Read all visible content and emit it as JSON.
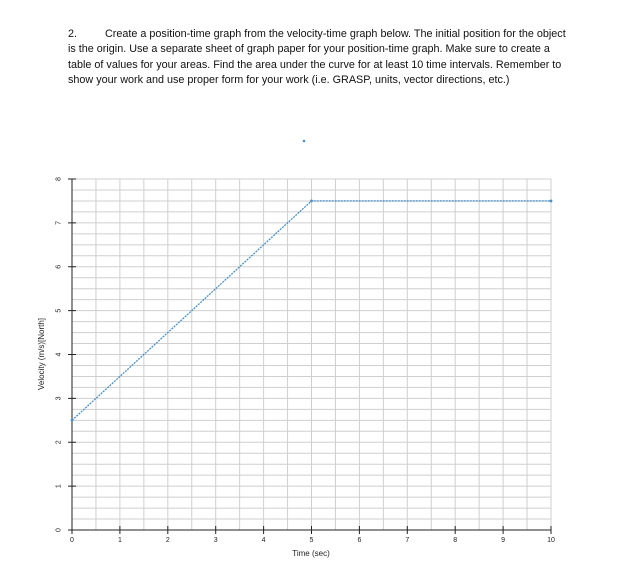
{
  "question": {
    "number": "2.",
    "text": "Create a position-time graph from the velocity-time graph below.  The initial position for the object is the origin.  Use a separate sheet of graph paper for your position-time graph.  Make sure to create a table of values for your areas.  Find the area under the curve for at least 10 time intervals.  Remember to show your work and use proper form for your work (i.e. GRASP, units, vector directions, etc.)"
  },
  "chart_data": {
    "type": "line",
    "xlabel": "Time (sec)",
    "ylabel": "Velocity (m/s)[North]",
    "xlim": [
      0,
      10
    ],
    "ylim": [
      0,
      8
    ],
    "x_ticks": [
      0,
      1,
      2,
      3,
      4,
      5,
      6,
      7,
      8,
      9,
      10
    ],
    "y_ticks": [
      0,
      1,
      2,
      3,
      4,
      5,
      6,
      7,
      8
    ],
    "grid": true,
    "series": [
      {
        "x": [
          0,
          5,
          10
        ],
        "y": [
          2.5,
          7.5,
          7.5
        ],
        "color": "#4a90c8"
      }
    ]
  }
}
